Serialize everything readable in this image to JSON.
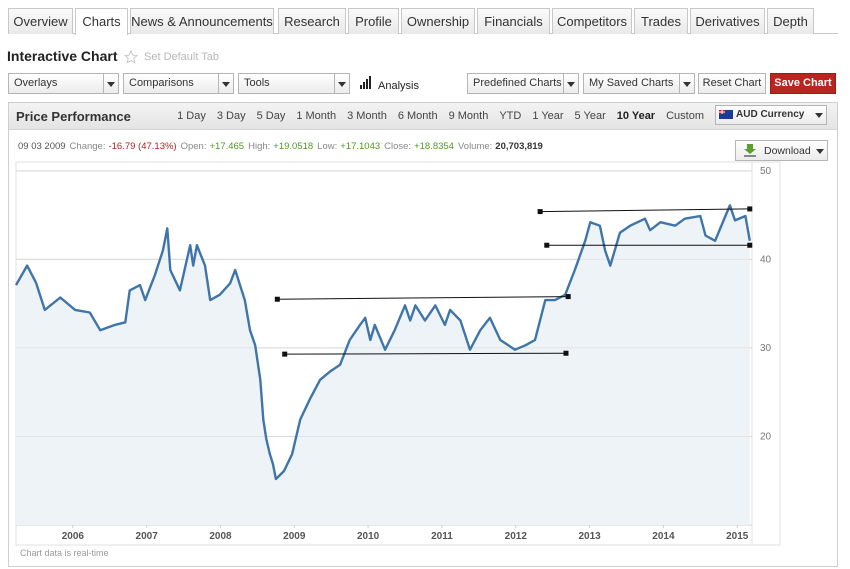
{
  "tabs": [
    "Overview",
    "Charts",
    "News & Announcements",
    "Research",
    "Profile",
    "Ownership",
    "Financials",
    "Competitors",
    "Trades",
    "Derivatives",
    "Depth"
  ],
  "active_tab": 1,
  "page_title": "Interactive Chart",
  "set_default": "Set Default Tab",
  "toolbar": {
    "dropdowns": [
      "Overlays",
      "Comparisons",
      "Tools"
    ],
    "analysis": "Analysis",
    "right_dropdowns": [
      "Predefined Charts",
      "My Saved Charts"
    ],
    "reset": "Reset Chart",
    "save": "Save Chart"
  },
  "panel": {
    "title": "Price Performance",
    "ranges": [
      "1 Day",
      "3 Day",
      "5 Day",
      "1 Month",
      "3 Month",
      "6 Month",
      "9 Month",
      "YTD",
      "1 Year",
      "5 Year",
      "10 Year",
      "Custom"
    ],
    "active_range": 10,
    "currency": "AUD Currency",
    "download": "Download",
    "footer": "Chart data is real-time"
  },
  "quote": {
    "date": "09 03 2009",
    "fields": [
      {
        "label": "Change:",
        "value": "-16.79 (47.13%)",
        "color": "#b22222"
      },
      {
        "label": "Open:",
        "value": "+17.465",
        "color": "#4e9a1e"
      },
      {
        "label": "High:",
        "value": "+19.0518",
        "color": "#4e9a1e"
      },
      {
        "label": "Low:",
        "value": "+17.1043",
        "color": "#4e9a1e"
      },
      {
        "label": "Close:",
        "value": "+18.8354",
        "color": "#4e9a1e"
      },
      {
        "label": "Volume:",
        "value": "20,703,819",
        "color": "#333333"
      }
    ]
  },
  "chart_data": {
    "type": "line",
    "color": "#3f75a8",
    "area_color": "#eef3f8",
    "grid": true,
    "x": [
      2005.73,
      2005.88,
      2006.0,
      2006.12,
      2006.33,
      2006.53,
      2006.73,
      2006.87,
      2007.07,
      2007.21,
      2007.27,
      2007.41,
      2007.48,
      2007.61,
      2007.72,
      2007.78,
      2007.82,
      2007.95,
      2008.09,
      2008.13,
      2008.18,
      2008.29,
      2008.36,
      2008.49,
      2008.63,
      2008.7,
      2008.83,
      2008.9,
      2008.97,
      2009.04,
      2009.08,
      2009.12,
      2009.17,
      2009.21,
      2009.25,
      2009.36,
      2009.47,
      2009.58,
      2009.71,
      2009.85,
      2009.98,
      2010.12,
      2010.25,
      2010.39,
      2010.46,
      2010.53,
      2010.59,
      2010.73,
      2010.86,
      2011.0,
      2011.07,
      2011.14,
      2011.27,
      2011.41,
      2011.54,
      2011.61,
      2011.75,
      2011.88,
      2012.02,
      2012.15,
      2012.29,
      2012.49,
      2012.63,
      2012.76,
      2012.9,
      2013.03,
      2013.17,
      2013.3,
      2013.44,
      2013.51,
      2013.64,
      2013.71,
      2013.78,
      2013.91,
      2014.05,
      2014.25,
      2014.32,
      2014.46,
      2014.66,
      2014.79,
      2015.0,
      2015.07,
      2015.2,
      2015.34,
      2015.4,
      2015.47,
      2015.61,
      2015.67
    ],
    "values": [
      37.1,
      39.3,
      37.4,
      34.3,
      35.7,
      34.3,
      34.0,
      32.0,
      32.6,
      32.9,
      36.5,
      37.1,
      35.4,
      38.2,
      41.0,
      43.5,
      38.8,
      36.5,
      41.6,
      39.3,
      41.6,
      39.3,
      35.4,
      36.0,
      37.3,
      38.8,
      35.4,
      32.0,
      30.3,
      26.4,
      21.9,
      19.7,
      18.0,
      16.9,
      15.2,
      16.1,
      18.0,
      21.9,
      24.2,
      26.4,
      27.3,
      28.1,
      30.9,
      32.6,
      33.4,
      30.9,
      32.6,
      29.8,
      32.0,
      34.8,
      33.1,
      34.8,
      33.1,
      34.8,
      32.6,
      34.3,
      33.1,
      29.8,
      32.0,
      33.4,
      30.9,
      29.8,
      30.3,
      30.9,
      35.4,
      35.4,
      36.0,
      38.8,
      42.1,
      44.2,
      43.8,
      41.0,
      39.3,
      43.0,
      43.8,
      44.6,
      43.3,
      44.2,
      43.8,
      44.6,
      44.9,
      42.7,
      42.1,
      44.9,
      46.1,
      44.4,
      44.9,
      42.1
    ],
    "trendlines": [
      {
        "x": [
          2009.27,
          2013.21
        ],
        "values": [
          35.5,
          35.8
        ]
      },
      {
        "x": [
          2009.37,
          2013.18
        ],
        "values": [
          29.3,
          29.4
        ]
      },
      {
        "x": [
          2012.83,
          2015.67
        ],
        "values": [
          45.4,
          45.7
        ]
      },
      {
        "x": [
          2012.92,
          2015.67
        ],
        "values": [
          41.6,
          41.6
        ]
      }
    ],
    "trendline_color": "#111111",
    "xlim": [
      2005.73,
      2015.7
    ],
    "xticks": [
      {
        "value": 2006.5,
        "label": "2006"
      },
      {
        "value": 2007.5,
        "label": "2007"
      },
      {
        "value": 2008.5,
        "label": "2008"
      },
      {
        "value": 2009.5,
        "label": "2009"
      },
      {
        "value": 2010.5,
        "label": "2010"
      },
      {
        "value": 2011.5,
        "label": "2011"
      },
      {
        "value": 2012.5,
        "label": "2012"
      },
      {
        "value": 2013.5,
        "label": "2013"
      },
      {
        "value": 2014.5,
        "label": "2014"
      },
      {
        "value": 2015.5,
        "label": "2015"
      }
    ],
    "ylim": [
      10,
      51
    ],
    "yticks": [
      20,
      30,
      40,
      50
    ]
  }
}
